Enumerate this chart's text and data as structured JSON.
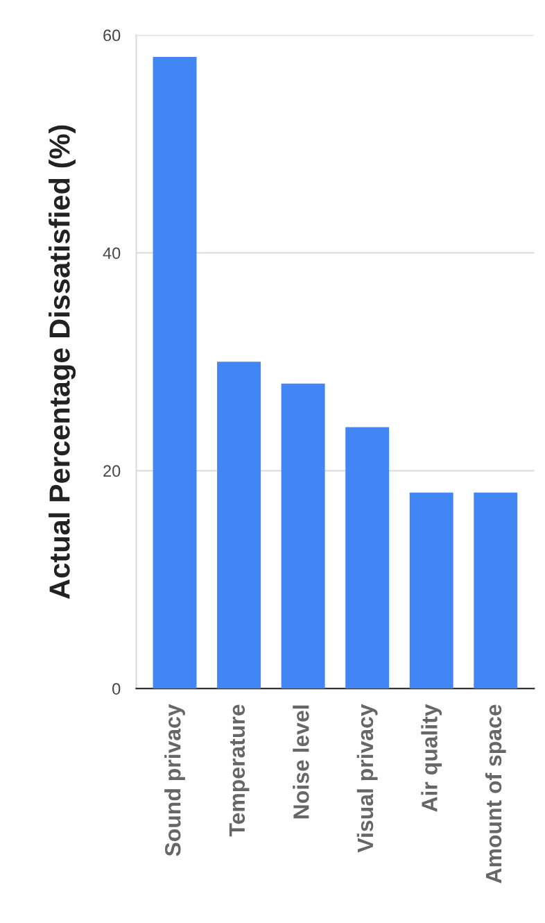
{
  "chart_data": {
    "type": "bar",
    "ylabel": "Actual Percentage Dissatisfied (%)",
    "categories": [
      "Sound privacy",
      "Temperature",
      "Noise level",
      "Visual privacy",
      "Air quality",
      "Amount of space"
    ],
    "values": [
      58,
      30,
      28,
      24,
      18,
      18
    ],
    "color": "#4285f4",
    "ylim": [
      0,
      60
    ],
    "yticks": [
      0,
      20,
      40,
      60
    ],
    "grid": "y"
  }
}
